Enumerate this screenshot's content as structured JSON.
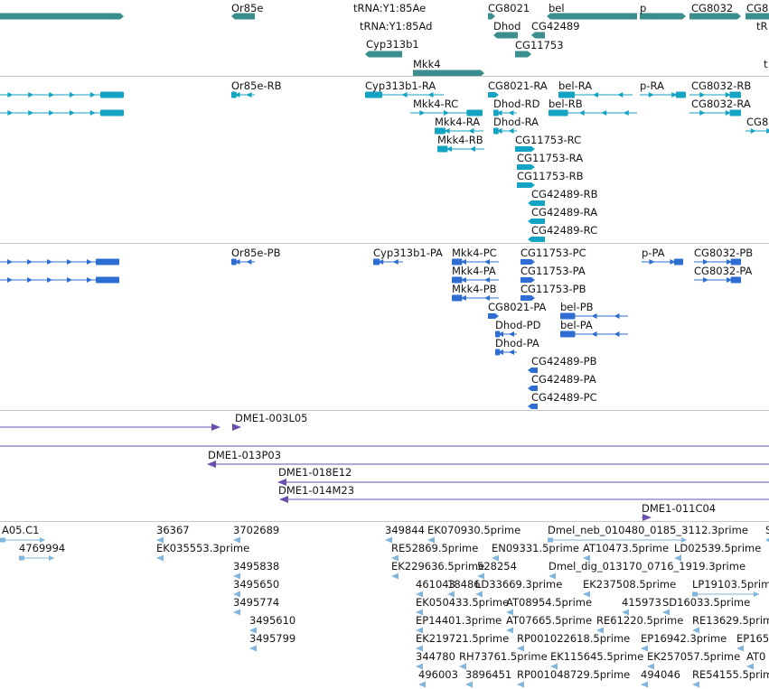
{
  "colors": {
    "gene": "#3a8e8e",
    "transcript": "#13a3c3",
    "protein": "#2e6ed3",
    "clone": "#6a4fb0",
    "est": "#7fb6df",
    "separator": "#c6c6c6"
  },
  "tracks": [
    {
      "name": "genes",
      "features": [
        {
          "label": "",
          "type": "arrow"
        },
        {
          "label": "Or85e",
          "type": "arrow"
        },
        {
          "label": "tRNA:Y1:85Ae",
          "type": "label"
        },
        {
          "label": "tRNA:Y1:85Ad",
          "type": "label"
        },
        {
          "label": "Cyp313b1",
          "type": "arrow"
        },
        {
          "label": "Mkk4",
          "type": "arrow"
        },
        {
          "label": "CG8021",
          "type": "arrow"
        },
        {
          "label": "Dhod",
          "type": "arrow"
        },
        {
          "label": "CG42489",
          "type": "arrow"
        },
        {
          "label": "CG11753",
          "type": "arrow"
        },
        {
          "label": "bel",
          "type": "arrow"
        },
        {
          "label": "p",
          "type": "arrow"
        },
        {
          "label": "CG8032",
          "type": "arrow"
        },
        {
          "label": "CG8",
          "type": "arrow"
        },
        {
          "label": "tR",
          "type": "label"
        },
        {
          "label": "t",
          "type": "label"
        }
      ]
    },
    {
      "name": "transcripts",
      "features": [
        {
          "label": "",
          "type": "exons"
        },
        {
          "label": "",
          "type": "exons"
        },
        {
          "label": "Or85e-RB",
          "type": "exons"
        },
        {
          "label": "Cyp313b1-RA",
          "type": "exons"
        },
        {
          "label": "Mkk4-RC",
          "type": "exons"
        },
        {
          "label": "Mkk4-RA",
          "type": "exons"
        },
        {
          "label": "Mkk4-RB",
          "type": "exons"
        },
        {
          "label": "CG8021-RA",
          "type": "exons"
        },
        {
          "label": "Dhod-RD",
          "type": "exons"
        },
        {
          "label": "Dhod-RA",
          "type": "exons"
        },
        {
          "label": "CG11753-RC",
          "type": "exons"
        },
        {
          "label": "CG11753-RA",
          "type": "exons"
        },
        {
          "label": "CG11753-RB",
          "type": "exons"
        },
        {
          "label": "CG42489-RB",
          "type": "exons"
        },
        {
          "label": "CG42489-RA",
          "type": "exons"
        },
        {
          "label": "CG42489-RC",
          "type": "exons"
        },
        {
          "label": "bel-RA",
          "type": "exons"
        },
        {
          "label": "bel-RB",
          "type": "exons"
        },
        {
          "label": "p-RA",
          "type": "exons"
        },
        {
          "label": "CG8032-RB",
          "type": "exons"
        },
        {
          "label": "CG8032-RA",
          "type": "exons"
        },
        {
          "label": "CG8",
          "type": "exons"
        }
      ]
    },
    {
      "name": "proteins",
      "features": [
        {
          "label": "",
          "type": "exons"
        },
        {
          "label": "",
          "type": "exons"
        },
        {
          "label": "Or85e-PB",
          "type": "exons"
        },
        {
          "label": "Cyp313b1-PA",
          "type": "exons"
        },
        {
          "label": "Mkk4-PC",
          "type": "exons"
        },
        {
          "label": "Mkk4-PA",
          "type": "exons"
        },
        {
          "label": "Mkk4-PB",
          "type": "exons"
        },
        {
          "label": "CG11753-PC",
          "type": "exons"
        },
        {
          "label": "CG11753-PA",
          "type": "exons"
        },
        {
          "label": "CG11753-PB",
          "type": "exons"
        },
        {
          "label": "CG8021-PA",
          "type": "exons"
        },
        {
          "label": "Dhod-PD",
          "type": "exons"
        },
        {
          "label": "Dhod-PA",
          "type": "exons"
        },
        {
          "label": "bel-PB",
          "type": "exons"
        },
        {
          "label": "bel-PA",
          "type": "exons"
        },
        {
          "label": "CG42489-PB",
          "type": "exons"
        },
        {
          "label": "CG42489-PA",
          "type": "exons"
        },
        {
          "label": "CG42489-PC",
          "type": "exons"
        },
        {
          "label": "p-PA",
          "type": "exons"
        },
        {
          "label": "CG8032-PB",
          "type": "exons"
        },
        {
          "label": "CG8032-PA",
          "type": "exons"
        }
      ]
    },
    {
      "name": "clones",
      "features": [
        {
          "label": "",
          "type": "line"
        },
        {
          "label": "DME1-003L05",
          "type": "line"
        },
        {
          "label": "",
          "type": "line"
        },
        {
          "label": "DME1-013P03",
          "type": "line"
        },
        {
          "label": "DME1-018E12",
          "type": "line"
        },
        {
          "label": "DME1-014M23",
          "type": "line"
        },
        {
          "label": "DME1-011C04",
          "type": "line"
        }
      ]
    },
    {
      "name": "ests",
      "features": [
        {
          "label": "A05.C1",
          "type": "est"
        },
        {
          "label": "4769994",
          "type": "est"
        },
        {
          "label": "36367",
          "type": "est"
        },
        {
          "label": "EK035553.3prime",
          "type": "est"
        },
        {
          "label": "3702689",
          "type": "est"
        },
        {
          "label": "3495838",
          "type": "est"
        },
        {
          "label": "3495650",
          "type": "est"
        },
        {
          "label": "3495774",
          "type": "est"
        },
        {
          "label": "3495610",
          "type": "est"
        },
        {
          "label": "3495799",
          "type": "est"
        },
        {
          "label": "349844",
          "type": "est"
        },
        {
          "label": "EK070930.5prime",
          "type": "est"
        },
        {
          "label": "Dmel_neb_010480_0185_3112.3prime",
          "type": "est"
        },
        {
          "label": "S",
          "type": "est"
        },
        {
          "label": "RE52869.5prime",
          "type": "est"
        },
        {
          "label": "EN09331.5prime",
          "type": "est"
        },
        {
          "label": "AT10473.5prime",
          "type": "est"
        },
        {
          "label": "LD02539.5prime",
          "type": "est"
        },
        {
          "label": "EK229636.5prime",
          "type": "est"
        },
        {
          "label": "528254",
          "type": "est"
        },
        {
          "label": "Dmel_dig_013170_0716_1919.3prime",
          "type": "est"
        },
        {
          "label": "461043",
          "type": "est"
        },
        {
          "label": "18486",
          "type": "est"
        },
        {
          "label": "LD33669.3prime",
          "type": "est"
        },
        {
          "label": "EK237508.5prime",
          "type": "est"
        },
        {
          "label": "LP19103.5prime",
          "type": "est"
        },
        {
          "label": "EK050433.5prime",
          "type": "est"
        },
        {
          "label": "AT08954.5prime",
          "type": "est"
        },
        {
          "label": "415973",
          "type": "est"
        },
        {
          "label": "SD16033.5prime",
          "type": "est"
        },
        {
          "label": "EP14401.3prime",
          "type": "est"
        },
        {
          "label": "AT07665.5prime",
          "type": "est"
        },
        {
          "label": "RE61220.5prime",
          "type": "est"
        },
        {
          "label": "RE13629.5prime",
          "type": "est"
        },
        {
          "label": "EK219721.5prime",
          "type": "est"
        },
        {
          "label": "RP001022618.5prime",
          "type": "est"
        },
        {
          "label": "EP16942.3prime",
          "type": "est"
        },
        {
          "label": "EP165",
          "type": "est"
        },
        {
          "label": "344780",
          "type": "est"
        },
        {
          "label": "RH73761.5prime",
          "type": "est"
        },
        {
          "label": "EK115645.5prime",
          "type": "est"
        },
        {
          "label": "EK257057.5prime",
          "type": "est"
        },
        {
          "label": "AT0",
          "type": "est"
        },
        {
          "label": "496003",
          "type": "est"
        },
        {
          "label": "3896451",
          "type": "est"
        },
        {
          "label": "RP001048729.5prime",
          "type": "est"
        },
        {
          "label": "494046",
          "type": "est"
        },
        {
          "label": "RE54155.5prime",
          "type": "est"
        }
      ]
    }
  ]
}
